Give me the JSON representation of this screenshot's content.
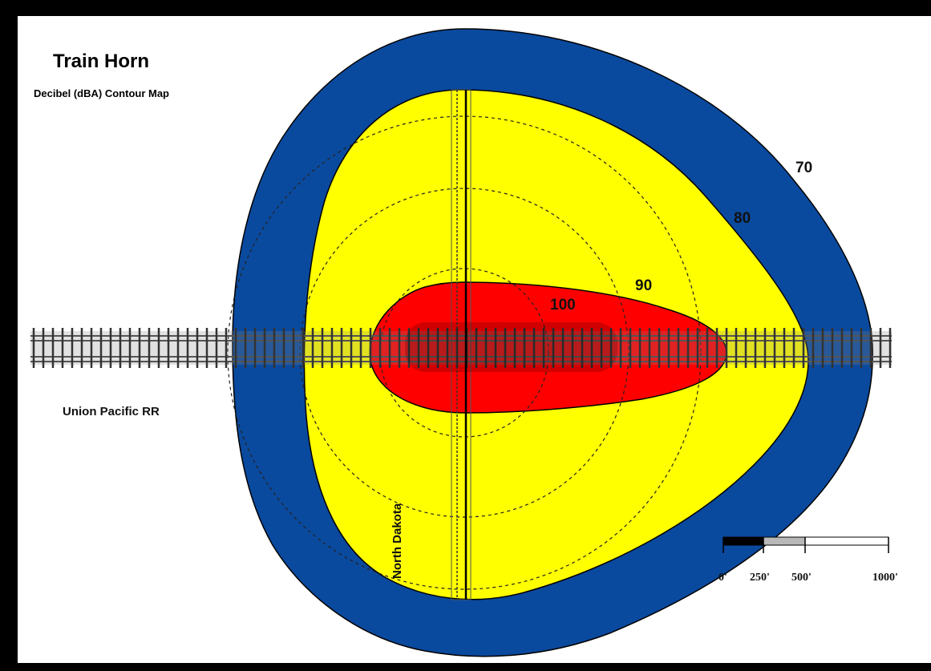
{
  "map": {
    "title": "Train Horn",
    "subtitle": "Decibel (dBA) Contour Map",
    "railroad_label": "Union Pacific RR",
    "street_label": "North Dakota"
  },
  "contours": [
    {
      "level": "70",
      "label": "70",
      "color": "#ffffff"
    },
    {
      "level": "80",
      "label": "80",
      "color": "#0a4a9e"
    },
    {
      "level": "90",
      "label": "90",
      "color": "#ffff00"
    },
    {
      "level": "100",
      "label": "100",
      "color": "#ff0000"
    }
  ],
  "scale_bar": {
    "labels": [
      "0'",
      "250'",
      "500'",
      "1000'"
    ],
    "fills": [
      "#000000",
      "#b8b8b8",
      "#ffffff"
    ]
  },
  "colors": {
    "background": "#ffffff",
    "frame": "#000000",
    "rings": "#222222",
    "track": "#555555"
  }
}
